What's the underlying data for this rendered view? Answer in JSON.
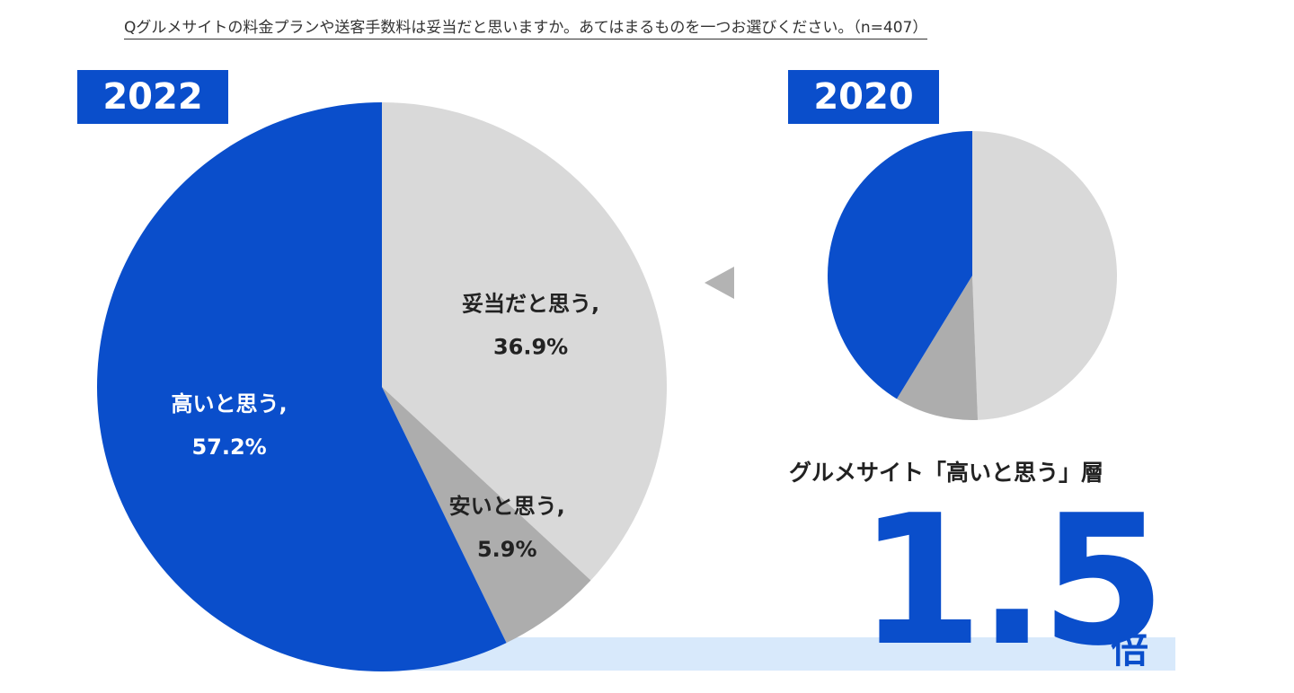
{
  "question": "Qグルメサイトの料金プランや送客手数料は妥当だと思いますか。あてはまるものを一つお選びください。（n=407）",
  "colors": {
    "high": "#0a4ecb",
    "cheap": "#adadad",
    "fair": "#d9d9d9",
    "highlight": "#d8e9fb"
  },
  "chart_data": [
    {
      "type": "pie",
      "title": "2022",
      "slices": [
        {
          "label": "妥当だと思う,",
          "value": 36.9,
          "value_label": "36.9%",
          "color_key": "fair"
        },
        {
          "label": "安いと思う,",
          "value": 5.9,
          "value_label": "5.9%",
          "color_key": "cheap"
        },
        {
          "label": "高いと思う,",
          "value": 57.2,
          "value_label": "57.2%",
          "color_key": "high"
        }
      ]
    },
    {
      "type": "pie",
      "title": "2020",
      "slices": [
        {
          "value": 45.5,
          "color_key": "fair"
        },
        {
          "value": 8.6,
          "color_key": "cheap"
        },
        {
          "value": 38.0,
          "color_key": "high"
        }
      ]
    }
  ],
  "callout": {
    "text": "グルメサイト「高いと思う」層",
    "multiplier": "1.5",
    "unit": "倍"
  }
}
